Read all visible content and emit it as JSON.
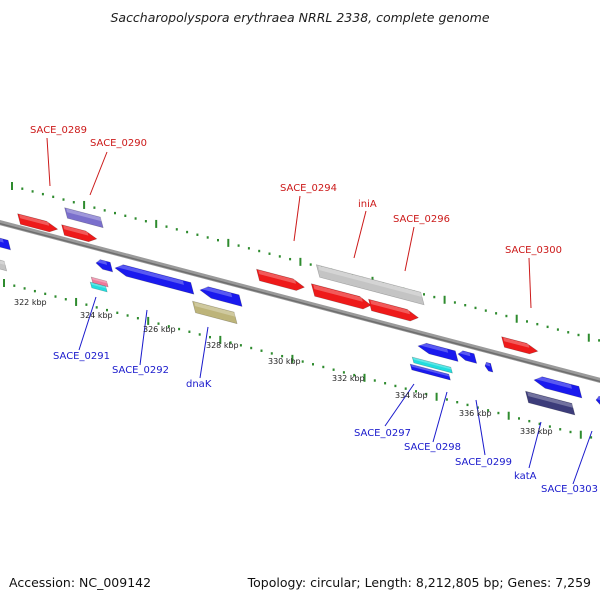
{
  "header": {
    "title": "Saccharopolyspora erythraea NRRL 2338, complete genome"
  },
  "footer": {
    "accession": "Accession: NC_009142",
    "summary": "Topology: circular; Length: 8,212,805 bp; Genes: 7,259"
  },
  "colors": {
    "background": "#ffffff",
    "backbone": "#8a8a8a",
    "tick_mark": "#2e8b2e",
    "forward_label": "#cc1a1a",
    "reverse_label": "#1a1acc",
    "gene_red": "#ee1a1a",
    "gene_blue": "#1a1aee",
    "gene_grey": "#c4c4c4",
    "gene_purple": "#7a6fcc",
    "gene_olive": "#bdb47a",
    "gene_navy": "#3c3c7a",
    "gene_cyan": "#22dddd",
    "gene_pink": "#ee7a9a"
  },
  "axis": {
    "unit": "kbp",
    "ticks": [
      {
        "label": "322 kbp",
        "value": 322
      },
      {
        "label": "324 kbp",
        "value": 324
      },
      {
        "label": "326 kbp",
        "value": 326
      },
      {
        "label": "328 kbp",
        "value": 328
      },
      {
        "label": "330 kbp",
        "value": 330
      },
      {
        "label": "332 kbp",
        "value": 332
      },
      {
        "label": "334 kbp",
        "value": 334
      },
      {
        "label": "336 kbp",
        "value": 336
      },
      {
        "label": "338 kbp",
        "value": 338
      }
    ]
  },
  "labels": {
    "forward": [
      "SACE_0289",
      "SACE_0290",
      "SACE_0294",
      "iniA",
      "SACE_0296",
      "SACE_0300"
    ],
    "reverse": [
      "SACE_0291",
      "SACE_0292",
      "dnaK",
      "SACE_0297",
      "SACE_0298",
      "SACE_0299",
      "katA",
      "SACE_0303"
    ]
  }
}
